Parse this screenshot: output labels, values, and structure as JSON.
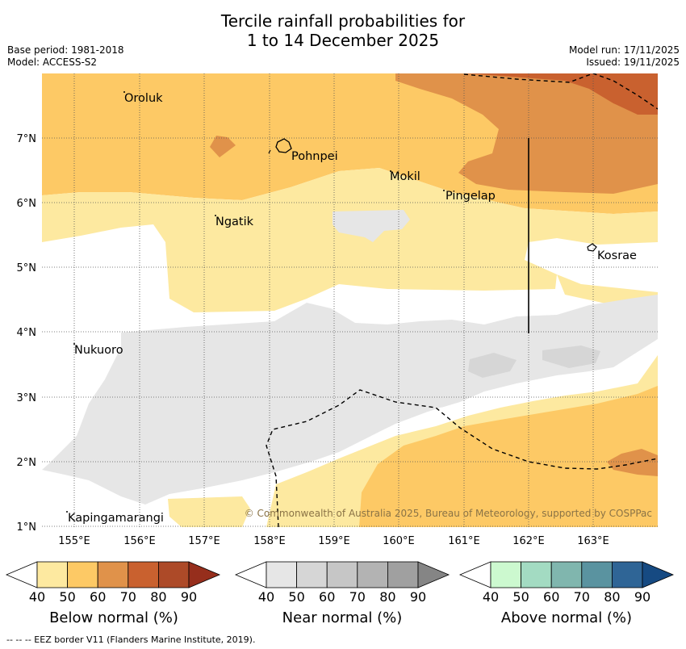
{
  "header": {
    "title_line1": "Tercile rainfall probabilities for",
    "title_line2": "1 to 14 December 2025",
    "base_period": "Base period: 1981-2018",
    "model": "Model: ACCESS-S2",
    "model_run": "Model run: 17/11/2025",
    "issued": "Issued: 19/11/2025"
  },
  "map": {
    "lon_ticks": [
      "155°E",
      "156°E",
      "157°E",
      "158°E",
      "159°E",
      "160°E",
      "161°E",
      "162°E",
      "163°E"
    ],
    "lat_ticks": [
      "7°N",
      "6°N",
      "5°N",
      "4°N",
      "3°N",
      "2°N",
      "1°N"
    ],
    "places": [
      "Oroluk",
      "Pohnpei",
      "Mokil",
      "Pingelap",
      "Ngatik",
      "Kosrae",
      "Nukuoro",
      "Kapingamarangi"
    ],
    "copyright": "© Commonwealth of Australia 2025, Bureau of Meteorology, supported by COSPPac"
  },
  "colorbars": [
    {
      "title": "Below normal (%)",
      "ticks": [
        "40",
        "50",
        "60",
        "70",
        "80",
        "90"
      ],
      "colors": [
        "#fde9a0",
        "#fdc965",
        "#e0924a",
        "#c9612f",
        "#ad4a28",
        "#962e1c"
      ]
    },
    {
      "title": "Near normal (%)",
      "ticks": [
        "40",
        "50",
        "60",
        "70",
        "80",
        "90"
      ],
      "colors": [
        "#e6e6e6",
        "#d6d6d6",
        "#c6c6c6",
        "#b3b3b3",
        "#a0a0a0",
        "#858585"
      ]
    },
    {
      "title": "Above normal (%)",
      "ticks": [
        "40",
        "50",
        "60",
        "70",
        "80",
        "90"
      ],
      "colors": [
        "#ccf9cf",
        "#a3dbc2",
        "#80b6ae",
        "#5a93a0",
        "#2f6596",
        "#164a82"
      ]
    }
  ],
  "colors": {
    "below_40": "#fde9a0",
    "below_50": "#fdc965",
    "below_60": "#e0924a",
    "below_70": "#c9612f",
    "near_40": "#e6e6e6",
    "near_50": "#d6d6d6"
  },
  "footnote": "--  --  -- EEZ border V11 (Flanders Marine Institute, 2019)."
}
